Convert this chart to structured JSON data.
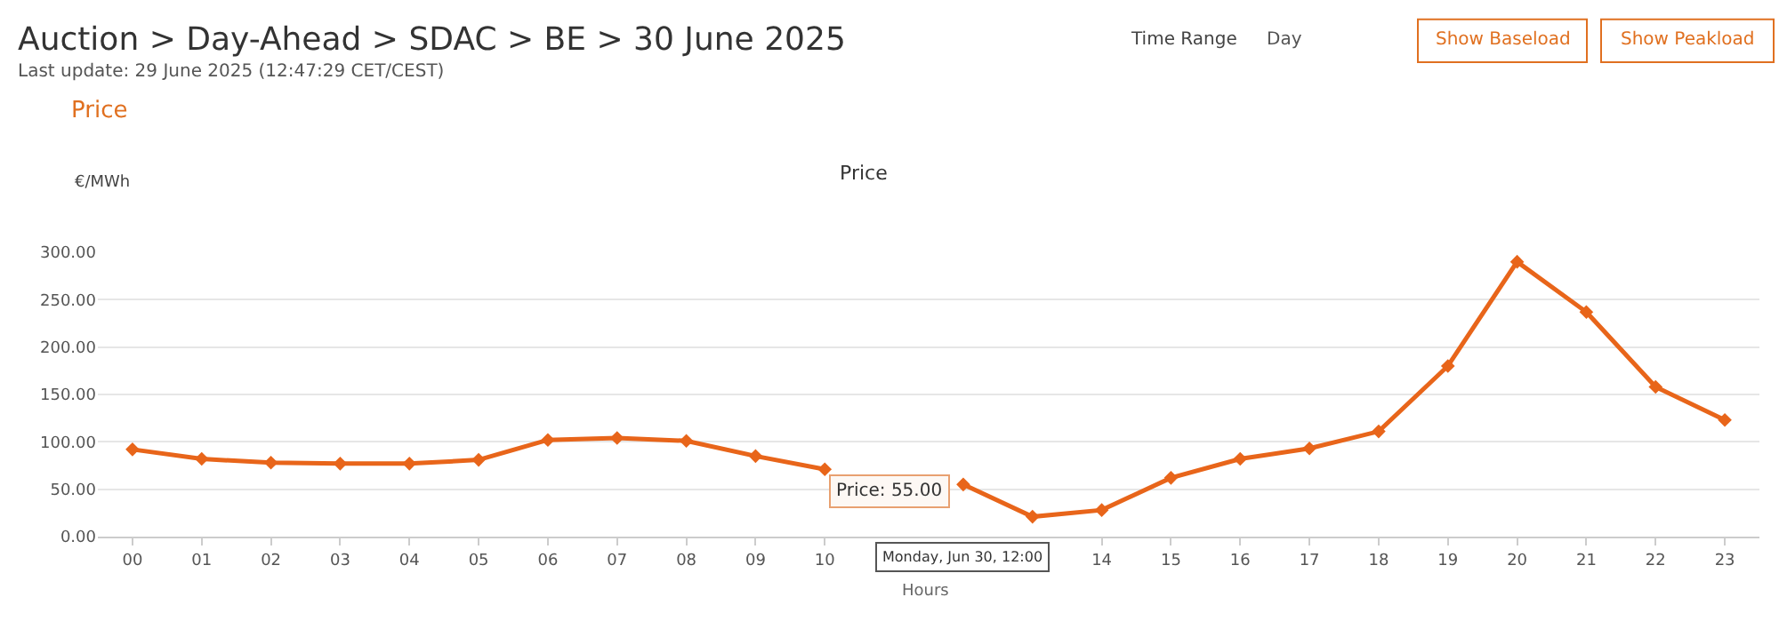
{
  "chart_data": {
    "type": "line",
    "title": "Auction > Day-Ahead > SDAC > BE > 30 June 2025",
    "subtitle": "Last update: 29 June 2025 (12:47:29 CET/CEST)",
    "xlabel": "Hours",
    "ylabel": "€/MWh",
    "annotations": [
      "Time Range",
      "Day",
      "Show Baseload",
      "Show Peakload",
      "Price",
      "Price: 55.00",
      "Monday, Jun 30, 12:00"
    ],
    "categories": [
      "00",
      "01",
      "02",
      "03",
      "04",
      "05",
      "06",
      "07",
      "08",
      "09",
      "10",
      null,
      null,
      null,
      "14",
      "15",
      "16",
      "17",
      "18",
      "19",
      "20",
      "21",
      "22",
      "23"
    ],
    "series": [
      {
        "name": "Price",
        "color": "#e8651a",
        "values": [
          92,
          82,
          78,
          77,
          77,
          81,
          102,
          104,
          101,
          85,
          71,
          null,
          55,
          21,
          28,
          62,
          82,
          93,
          111,
          180,
          290,
          237,
          158,
          123
        ]
      }
    ],
    "ylim": [
      0,
      300
    ],
    "yticks": [
      {
        "value": 0,
        "label": "0.00"
      },
      {
        "value": 50,
        "label": "50.00"
      },
      {
        "value": 100,
        "label": "100.00"
      },
      {
        "value": 150,
        "label": "150.00"
      },
      {
        "value": 200,
        "label": "200.00"
      },
      {
        "value": 250,
        "label": "250.00"
      },
      {
        "value": 300,
        "label": "300.00"
      }
    ],
    "grid": "y",
    "marker": "diamond",
    "line_style": "solid",
    "legend": false
  }
}
